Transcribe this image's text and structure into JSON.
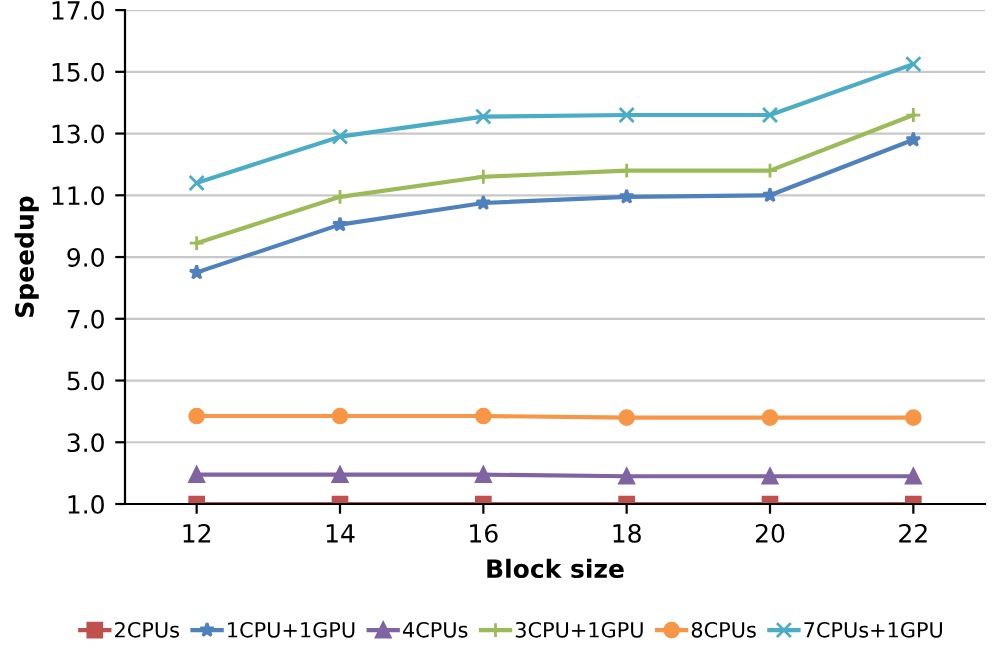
{
  "chart_data": {
    "type": "line",
    "xlabel": "Block size",
    "ylabel": "Speedup",
    "categories": [
      "12",
      "14",
      "16",
      "18",
      "20",
      "22"
    ],
    "series": [
      {
        "name": "2CPUs",
        "color": "#c0504d",
        "marker": "square",
        "values": [
          1.0,
          1.0,
          1.0,
          1.0,
          1.0,
          1.0
        ]
      },
      {
        "name": "1CPU+1GPU",
        "color": "#4f81bd",
        "marker": "star",
        "values": [
          8.5,
          10.05,
          10.75,
          10.95,
          11.0,
          12.8
        ]
      },
      {
        "name": "4CPUs",
        "color": "#8064a2",
        "marker": "triangle",
        "values": [
          1.95,
          1.95,
          1.95,
          1.9,
          1.9,
          1.9
        ]
      },
      {
        "name": "3CPU+1GPU",
        "color": "#9bbb59",
        "marker": "plus",
        "values": [
          9.45,
          10.95,
          11.6,
          11.8,
          11.8,
          13.6
        ]
      },
      {
        "name": "8CPUs",
        "color": "#f79646",
        "marker": "circle",
        "values": [
          3.85,
          3.85,
          3.85,
          3.8,
          3.8,
          3.8
        ]
      },
      {
        "name": "7CPUs+1GPU",
        "color": "#4bacc6",
        "marker": "cross",
        "values": [
          11.4,
          12.9,
          13.55,
          13.6,
          13.6,
          15.25
        ]
      }
    ],
    "ylim": [
      1.0,
      17.0
    ],
    "yticks": [
      {
        "value": 1,
        "label": "1.0"
      },
      {
        "value": 3,
        "label": "3.0"
      },
      {
        "value": 5,
        "label": "5.0"
      },
      {
        "value": 7,
        "label": "7.0"
      },
      {
        "value": 9,
        "label": "9.0"
      },
      {
        "value": 11,
        "label": "11.0"
      },
      {
        "value": 13,
        "label": "13.0"
      },
      {
        "value": 15,
        "label": "15.0"
      },
      {
        "value": 17,
        "label": "17.0"
      }
    ],
    "grid": "y",
    "legend": "bottom"
  }
}
